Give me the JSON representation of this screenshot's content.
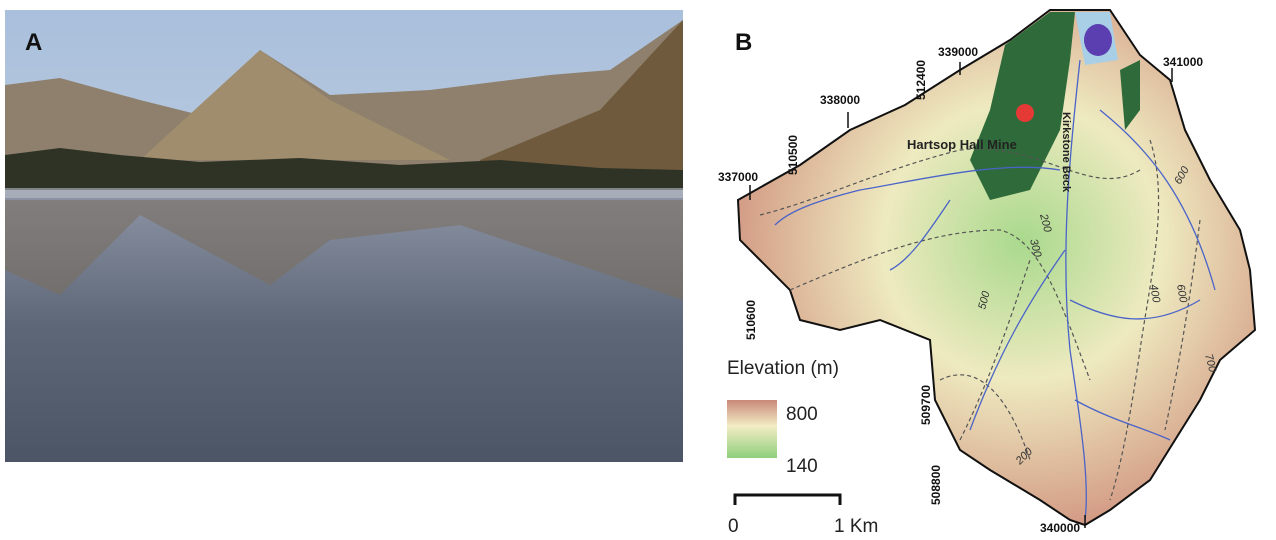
{
  "panel_a": {
    "label": "A"
  },
  "panel_b": {
    "label": "B",
    "coordinates": [
      339000,
      341000,
      512400,
      338000,
      510500,
      337000,
      510600,
      509700,
      508800,
      340000
    ],
    "places": [
      "Hartsop Hall Mine",
      "Kirkstone Beck"
    ],
    "contour_labels": [
      600,
      200,
      300,
      500,
      400,
      600,
      700,
      200
    ],
    "legend": {
      "title": "Elevation (m)",
      "max": 800,
      "min": 140
    },
    "scale_bar": {
      "start": 0,
      "end": "1 Km"
    }
  }
}
